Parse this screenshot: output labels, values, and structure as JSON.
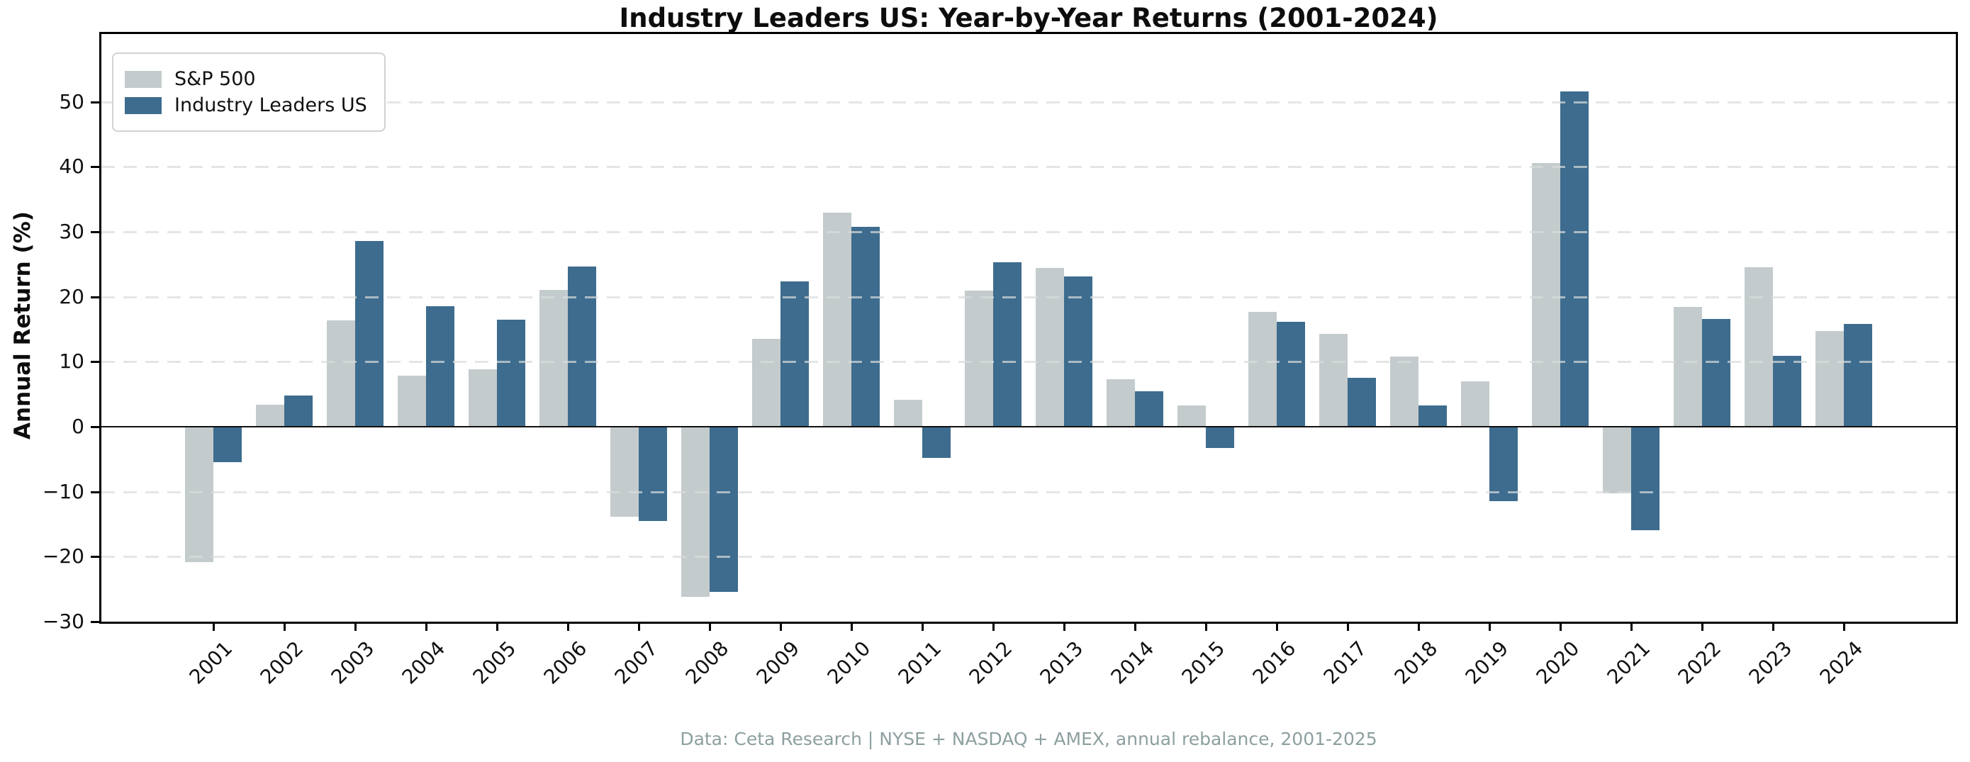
{
  "chart_data": {
    "type": "bar",
    "title": "Industry Leaders US: Year-by-Year Returns (2001-2024)",
    "ylabel": "Annual Return (%)",
    "footer": "Data: Ceta Research | NYSE + NASDAQ + AMEX, annual rebalance, 2001-2025",
    "categories": [
      "2001",
      "2002",
      "2003",
      "2004",
      "2005",
      "2006",
      "2007",
      "2008",
      "2009",
      "2010",
      "2011",
      "2012",
      "2013",
      "2014",
      "2015",
      "2016",
      "2017",
      "2018",
      "2019",
      "2020",
      "2021",
      "2022",
      "2023",
      "2024"
    ],
    "series": [
      {
        "name": "S&P 500",
        "color": "#c4cbcc",
        "values": [
          -20.8,
          3.4,
          16.4,
          7.8,
          8.8,
          21.0,
          -13.8,
          -26.2,
          13.5,
          32.9,
          4.1,
          20.9,
          24.4,
          7.3,
          3.3,
          17.7,
          14.3,
          10.8,
          7.0,
          40.6,
          -10.3,
          18.4,
          24.5,
          14.7
        ]
      },
      {
        "name": "Industry Leaders US",
        "color": "#3d6c8e",
        "values": [
          -5.4,
          4.8,
          28.6,
          18.5,
          16.5,
          24.7,
          -14.5,
          -25.4,
          22.4,
          30.7,
          -4.8,
          25.3,
          23.1,
          5.4,
          -3.3,
          16.1,
          7.5,
          3.3,
          -11.4,
          51.6,
          -15.9,
          16.6,
          10.9,
          15.8
        ]
      }
    ],
    "yticks": [
      50,
      40,
      30,
      20,
      10,
      0,
      -10,
      -20,
      -30
    ],
    "ylim": [
      -30,
      60.4
    ],
    "grid": "horizontal-dashed",
    "gridline_color": "#d9dcdc",
    "axis_color": "#000000",
    "legend_position": "upper left"
  }
}
